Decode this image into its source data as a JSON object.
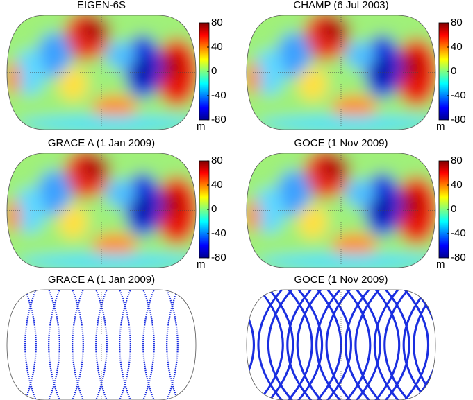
{
  "panels": [
    {
      "title": "EIGEN-6S",
      "kind": "field",
      "colorbar": {
        "lim": [
          -80,
          80
        ],
        "ticks": [
          80,
          40,
          0,
          -40,
          -80
        ],
        "unit": "m"
      }
    },
    {
      "title": "CHAMP (6 Jul 2003)",
      "kind": "field",
      "colorbar": {
        "lim": [
          -80,
          80
        ],
        "ticks": [
          80,
          40,
          0,
          -40,
          -80
        ],
        "unit": "m"
      }
    },
    {
      "title": "GRACE A (1 Jan 2009)",
      "kind": "field",
      "colorbar": {
        "lim": [
          -80,
          80
        ],
        "ticks": [
          80,
          40,
          0,
          -40,
          -80
        ],
        "unit": "m"
      }
    },
    {
      "title": "GOCE (1 Nov 2009)",
      "kind": "field",
      "colorbar": {
        "lim": [
          -80,
          80
        ],
        "ticks": [
          80,
          40,
          0,
          -40,
          -80
        ],
        "unit": "m"
      }
    },
    {
      "title": "GRACE A (1 Jan 2009)",
      "kind": "orbit-grace"
    },
    {
      "title": "GOCE (1 Nov 2009)",
      "kind": "orbit-goce"
    }
  ]
}
